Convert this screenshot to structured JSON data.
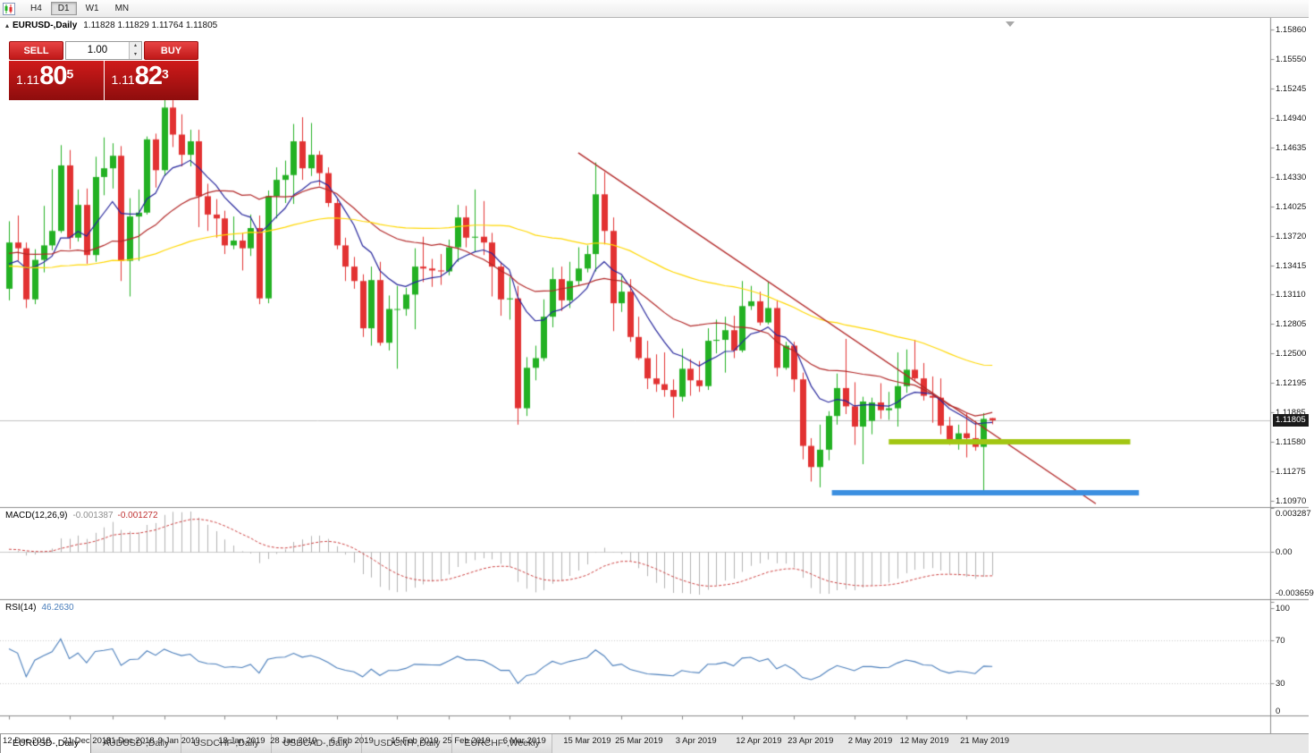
{
  "toolbar": {
    "timeframes": [
      {
        "label": "H4",
        "active": false
      },
      {
        "label": "D1",
        "active": true
      },
      {
        "label": "W1",
        "active": false
      },
      {
        "label": "MN",
        "active": false
      }
    ]
  },
  "chart_header": {
    "symbol_label": "EURUSD-,Daily",
    "ohlc": "1.11828 1.11829 1.11764 1.11805"
  },
  "trade_panel": {
    "sell_label": "SELL",
    "buy_label": "BUY",
    "volume": "1.00",
    "sell_price": {
      "base": "1.11",
      "big": "80",
      "sup": "5"
    },
    "buy_price": {
      "base": "1.11",
      "big": "82",
      "sup": "3"
    }
  },
  "icons": {
    "collapse": "▴",
    "spinner_up": "▴",
    "spinner_down": "▾"
  },
  "price_axis": {
    "labels": [
      "1.15860",
      "1.15550",
      "1.15245",
      "1.14940",
      "1.14635",
      "1.14330",
      "1.14025",
      "1.13720",
      "1.13415",
      "1.13110",
      "1.12805",
      "1.12500",
      "1.12195",
      "1.11885",
      "1.11580",
      "1.11275",
      "1.10970"
    ],
    "current": "1.11805"
  },
  "macd_panel": {
    "title": "MACD(12,26,9)",
    "value_main": "-0.001387",
    "value_signal": "-0.001272",
    "axis_labels": [
      "0.003287",
      "0.00",
      "-0.003659"
    ]
  },
  "rsi_panel": {
    "title": "RSI(14)",
    "value": "46.2630",
    "axis_labels": [
      "100",
      "70",
      "30",
      "0"
    ],
    "levels": [
      70,
      30
    ]
  },
  "date_axis": [
    {
      "label": "12 Dec 2018",
      "index": 0
    },
    {
      "label": "21 Dec 2018",
      "index": 7
    },
    {
      "label": "31 Dec 2018",
      "index": 12
    },
    {
      "label": "9 Jan 2019",
      "index": 18
    },
    {
      "label": "18 Jan 2019",
      "index": 25
    },
    {
      "label": "28 Jan 2019",
      "index": 31
    },
    {
      "label": "6 Feb 2019",
      "index": 38
    },
    {
      "label": "15 Feb 2019",
      "index": 45
    },
    {
      "label": "25 Feb 2019",
      "index": 51
    },
    {
      "label": "6 Mar 2019",
      "index": 58
    },
    {
      "label": "15 Mar 2019",
      "index": 65
    },
    {
      "label": "25 Mar 2019",
      "index": 71
    },
    {
      "label": "3 Apr 2019",
      "index": 78
    },
    {
      "label": "12 Apr 2019",
      "index": 85
    },
    {
      "label": "23 Apr 2019",
      "index": 91
    },
    {
      "label": "2 May 2019",
      "index": 98
    },
    {
      "label": "12 May 2019",
      "index": 104
    },
    {
      "label": "21 May 2019",
      "index": 111
    }
  ],
  "tabs": [
    {
      "label": "EURUSD-,Daily",
      "active": true
    },
    {
      "label": "AUDUSD-,Daily",
      "active": false
    },
    {
      "label": "USDCHF-,Daily",
      "active": false
    },
    {
      "label": "USDCAD-,Daily",
      "active": false
    },
    {
      "label": "USDCNH-,Daily",
      "active": false
    },
    {
      "label": "EURCHF-,Weekly",
      "active": false
    }
  ],
  "colors": {
    "bull": "#23b123",
    "bear": "#e23232",
    "histogram": "#b2b2b2",
    "signal": "#cc4040",
    "rsi": "#4a7ebb",
    "bid": "#c0c0c0",
    "axis": "#8a8a8a",
    "grid": "#c8c8c8"
  },
  "chart_data": {
    "type": "candlestick",
    "symbol": "EURUSD-",
    "timeframe": "Daily",
    "price_range": {
      "top": 1.1586,
      "bottom": 1.1097
    },
    "macd": {
      "fast": 12,
      "slow": 26,
      "signal": 9
    },
    "rsi": {
      "period": 14
    },
    "moving_averages": [
      {
        "period": 9,
        "type": "ema",
        "color": "#26269c"
      },
      {
        "period": 21,
        "type": "sma",
        "color": "#b22828"
      },
      {
        "period": 55,
        "type": "sma",
        "color": "#ffd700"
      }
    ],
    "overlays": {
      "trendline": {
        "color": "#b22828",
        "from": {
          "index": 66,
          "price": 1.1458
        },
        "to": {
          "index": 126,
          "price": 1.1094
        }
      },
      "support_line": {
        "color": "#a2c613",
        "price": 1.1158,
        "from_index": 102,
        "to_index": 130,
        "width": 6
      },
      "demand_line": {
        "color": "#3b8fe0",
        "price": 1.1105,
        "from_index": 95.4,
        "to_index": 131,
        "width": 6
      },
      "bid_line": {
        "price": 1.11805
      }
    },
    "candles": [
      [
        1.1317,
        1.1387,
        1.1305,
        1.1365
      ],
      [
        1.1365,
        1.1393,
        1.1346,
        1.1359
      ],
      [
        1.1359,
        1.1365,
        1.1297,
        1.1306
      ],
      [
        1.1306,
        1.1358,
        1.1301,
        1.1347
      ],
      [
        1.1347,
        1.1403,
        1.1334,
        1.1362
      ],
      [
        1.1362,
        1.1441,
        1.1357,
        1.1377
      ],
      [
        1.1377,
        1.1466,
        1.1375,
        1.1445
      ],
      [
        1.1445,
        1.1461,
        1.1358,
        1.137
      ],
      [
        1.137,
        1.142,
        1.1366,
        1.1404
      ],
      [
        1.1404,
        1.1421,
        1.1343,
        1.1352
      ],
      [
        1.1352,
        1.1454,
        1.1345,
        1.1433
      ],
      [
        1.1433,
        1.1474,
        1.1414,
        1.1442
      ],
      [
        1.1442,
        1.1468,
        1.1421,
        1.1455
      ],
      [
        1.1455,
        1.1465,
        1.1325,
        1.1346
      ],
      [
        1.1346,
        1.1411,
        1.1309,
        1.1392
      ],
      [
        1.1392,
        1.142,
        1.1346,
        1.1396
      ],
      [
        1.1396,
        1.1475,
        1.1394,
        1.1472
      ],
      [
        1.1472,
        1.1478,
        1.1422,
        1.144
      ],
      [
        1.144,
        1.1516,
        1.1434,
        1.1505
      ],
      [
        1.1505,
        1.1513,
        1.1464,
        1.1477
      ],
      [
        1.1477,
        1.1498,
        1.1444,
        1.1456
      ],
      [
        1.1456,
        1.1482,
        1.1444,
        1.147
      ],
      [
        1.147,
        1.1482,
        1.1381,
        1.1413
      ],
      [
        1.1413,
        1.1426,
        1.1377,
        1.1394
      ],
      [
        1.1394,
        1.141,
        1.137,
        1.139
      ],
      [
        1.139,
        1.1398,
        1.1353,
        1.1362
      ],
      [
        1.1362,
        1.1392,
        1.1358,
        1.1367
      ],
      [
        1.1367,
        1.1375,
        1.1336,
        1.1359
      ],
      [
        1.1359,
        1.1394,
        1.1351,
        1.138
      ],
      [
        1.138,
        1.1393,
        1.1301,
        1.1307
      ],
      [
        1.1307,
        1.1419,
        1.1302,
        1.1413
      ],
      [
        1.1413,
        1.1443,
        1.139,
        1.143
      ],
      [
        1.143,
        1.145,
        1.1406,
        1.1435
      ],
      [
        1.1435,
        1.1488,
        1.1405,
        1.147
      ],
      [
        1.147,
        1.1495,
        1.143,
        1.1442
      ],
      [
        1.1442,
        1.1489,
        1.1434,
        1.1456
      ],
      [
        1.1456,
        1.146,
        1.1424,
        1.1437
      ],
      [
        1.1437,
        1.1443,
        1.1402,
        1.1406
      ],
      [
        1.1406,
        1.141,
        1.1358,
        1.1362
      ],
      [
        1.1362,
        1.137,
        1.1325,
        1.134
      ],
      [
        1.134,
        1.135,
        1.1317,
        1.1325
      ],
      [
        1.1325,
        1.1332,
        1.1267,
        1.1276
      ],
      [
        1.1276,
        1.134,
        1.1258,
        1.1326
      ],
      [
        1.1326,
        1.1345,
        1.1258,
        1.1261
      ],
      [
        1.1261,
        1.131,
        1.1253,
        1.1296
      ],
      [
        1.1296,
        1.132,
        1.1234,
        1.1296
      ],
      [
        1.1296,
        1.1318,
        1.1289,
        1.1311
      ],
      [
        1.1311,
        1.1359,
        1.1275,
        1.134
      ],
      [
        1.134,
        1.1371,
        1.1324,
        1.1338
      ],
      [
        1.1338,
        1.1348,
        1.1319,
        1.1336
      ],
      [
        1.1336,
        1.1353,
        1.1321,
        1.1335
      ],
      [
        1.1335,
        1.1368,
        1.1331,
        1.136
      ],
      [
        1.136,
        1.1404,
        1.1345,
        1.1391
      ],
      [
        1.1391,
        1.1403,
        1.136,
        1.137
      ],
      [
        1.137,
        1.142,
        1.1355,
        1.1371
      ],
      [
        1.1371,
        1.1408,
        1.1352,
        1.1365
      ],
      [
        1.1365,
        1.1375,
        1.1309,
        1.134
      ],
      [
        1.134,
        1.1345,
        1.1289,
        1.1306
      ],
      [
        1.1306,
        1.1329,
        1.1285,
        1.1307
      ],
      [
        1.1307,
        1.132,
        1.1176,
        1.1193
      ],
      [
        1.1193,
        1.1246,
        1.1185,
        1.1235
      ],
      [
        1.1235,
        1.1258,
        1.1222,
        1.1245
      ],
      [
        1.1245,
        1.1306,
        1.1242,
        1.1288
      ],
      [
        1.1288,
        1.1339,
        1.1277,
        1.1327
      ],
      [
        1.1327,
        1.134,
        1.1294,
        1.1305
      ],
      [
        1.1305,
        1.1345,
        1.1297,
        1.1325
      ],
      [
        1.1325,
        1.136,
        1.132,
        1.1338
      ],
      [
        1.1338,
        1.1362,
        1.1334,
        1.1353
      ],
      [
        1.1353,
        1.1448,
        1.1335,
        1.1415
      ],
      [
        1.1415,
        1.1438,
        1.1363,
        1.1377
      ],
      [
        1.1377,
        1.1391,
        1.1273,
        1.1302
      ],
      [
        1.1302,
        1.133,
        1.1293,
        1.1314
      ],
      [
        1.1314,
        1.1327,
        1.1262,
        1.1267
      ],
      [
        1.1267,
        1.1288,
        1.1243,
        1.1245
      ],
      [
        1.1245,
        1.1263,
        1.1213,
        1.1224
      ],
      [
        1.1224,
        1.1249,
        1.121,
        1.1218
      ],
      [
        1.1218,
        1.1251,
        1.1205,
        1.1212
      ],
      [
        1.1212,
        1.1223,
        1.1183,
        1.1205
      ],
      [
        1.1205,
        1.1255,
        1.12,
        1.1234
      ],
      [
        1.1234,
        1.1244,
        1.1206,
        1.1222
      ],
      [
        1.1222,
        1.1242,
        1.121,
        1.1216
      ],
      [
        1.1216,
        1.1276,
        1.1212,
        1.1263
      ],
      [
        1.1263,
        1.1285,
        1.125,
        1.1264
      ],
      [
        1.1264,
        1.1288,
        1.123,
        1.1274
      ],
      [
        1.1274,
        1.1289,
        1.1245,
        1.1253
      ],
      [
        1.1253,
        1.1325,
        1.1251,
        1.1299
      ],
      [
        1.1299,
        1.132,
        1.1295,
        1.1304
      ],
      [
        1.1304,
        1.1314,
        1.1279,
        1.1282
      ],
      [
        1.1282,
        1.1324,
        1.128,
        1.1297
      ],
      [
        1.1297,
        1.1305,
        1.1226,
        1.1235
      ],
      [
        1.1235,
        1.1262,
        1.1233,
        1.1258
      ],
      [
        1.1258,
        1.1262,
        1.121,
        1.1223
      ],
      [
        1.1223,
        1.123,
        1.114,
        1.1154
      ],
      [
        1.1154,
        1.1162,
        1.1117,
        1.1132
      ],
      [
        1.1132,
        1.1176,
        1.1111,
        1.115
      ],
      [
        1.115,
        1.119,
        1.1139,
        1.1185
      ],
      [
        1.1185,
        1.1229,
        1.1176,
        1.1214
      ],
      [
        1.1214,
        1.1265,
        1.1187,
        1.1195
      ],
      [
        1.1195,
        1.122,
        1.1155,
        1.1174
      ],
      [
        1.1174,
        1.1205,
        1.1135,
        1.12
      ],
      [
        1.118,
        1.1204,
        1.1166,
        1.1199
      ],
      [
        1.1199,
        1.1219,
        1.1182,
        1.1191
      ],
      [
        1.1191,
        1.121,
        1.1181,
        1.1193
      ],
      [
        1.1193,
        1.1251,
        1.1174,
        1.1216
      ],
      [
        1.1216,
        1.1254,
        1.1209,
        1.1233
      ],
      [
        1.1233,
        1.1264,
        1.1221,
        1.1224
      ],
      [
        1.1224,
        1.124,
        1.1201,
        1.1206
      ],
      [
        1.1206,
        1.1226,
        1.1178,
        1.1204
      ],
      [
        1.1204,
        1.1224,
        1.1166,
        1.1175
      ],
      [
        1.1175,
        1.1184,
        1.1155,
        1.1159
      ],
      [
        1.1159,
        1.1176,
        1.115,
        1.1167
      ],
      [
        1.1167,
        1.1188,
        1.1142,
        1.1162
      ],
      [
        1.1162,
        1.118,
        1.1149,
        1.1153
      ],
      [
        1.1153,
        1.1188,
        1.1107,
        1.1182
      ],
      [
        1.11828,
        1.11829,
        1.11764,
        1.11805
      ]
    ]
  }
}
